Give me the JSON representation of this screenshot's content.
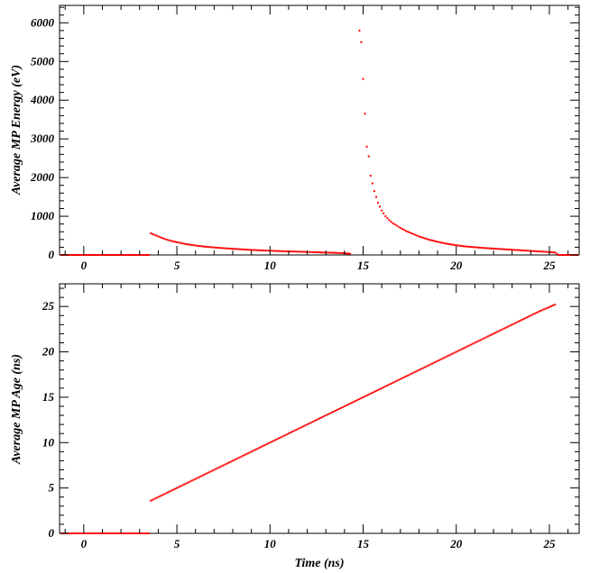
{
  "chart_data": [
    {
      "type": "scatter",
      "ylabel": "Average MP Energy (eV)",
      "xlabel": "",
      "xlim": [
        -1.3,
        26.6
      ],
      "ylim": [
        0,
        6450
      ],
      "x_ticks": [
        0,
        5,
        10,
        15,
        20,
        25
      ],
      "y_ticks": [
        0,
        1000,
        2000,
        3000,
        4000,
        5000,
        6000
      ],
      "x_tick_labels": [
        "0",
        "5",
        "10",
        "15",
        "20",
        "25"
      ],
      "y_tick_labels": [
        "0",
        "1000",
        "2000",
        "3000",
        "4000",
        "5000",
        "6000"
      ],
      "grid": false,
      "marker_color": "#ff0000",
      "series": [
        {
          "points": [
            [
              -1.2,
              0
            ],
            [
              0,
              0
            ],
            [
              1,
              0
            ],
            [
              2,
              0
            ],
            [
              3,
              0
            ],
            [
              3.5,
              0
            ],
            [
              3.6,
              560
            ],
            [
              3.8,
              520
            ],
            [
              4.0,
              480
            ],
            [
              4.2,
              440
            ],
            [
              4.5,
              390
            ],
            [
              4.8,
              350
            ],
            [
              5.0,
              330
            ],
            [
              5.5,
              280
            ],
            [
              6.0,
              245
            ],
            [
              6.5,
              215
            ],
            [
              7.0,
              195
            ],
            [
              7.5,
              175
            ],
            [
              8.0,
              160
            ],
            [
              8.5,
              145
            ],
            [
              9.0,
              130
            ],
            [
              9.5,
              120
            ],
            [
              10.0,
              110
            ],
            [
              10.5,
              100
            ],
            [
              11.0,
              92
            ],
            [
              11.5,
              85
            ],
            [
              12.0,
              78
            ],
            [
              12.5,
              70
            ],
            [
              13.0,
              62
            ],
            [
              13.5,
              55
            ],
            [
              14.0,
              45
            ],
            [
              14.3,
              30
            ],
            [
              14.8,
              5800
            ],
            [
              14.9,
              5500
            ],
            [
              15.0,
              4550
            ],
            [
              15.1,
              3650
            ],
            [
              15.2,
              2800
            ],
            [
              15.3,
              2550
            ],
            [
              15.4,
              2050
            ],
            [
              15.5,
              1850
            ],
            [
              15.6,
              1650
            ],
            [
              15.7,
              1500
            ],
            [
              15.8,
              1350
            ],
            [
              15.9,
              1250
            ],
            [
              16.0,
              1150
            ],
            [
              16.2,
              1000
            ],
            [
              16.4,
              900
            ],
            [
              16.6,
              820
            ],
            [
              16.8,
              760
            ],
            [
              17.0,
              700
            ],
            [
              17.3,
              620
            ],
            [
              17.6,
              560
            ],
            [
              18.0,
              480
            ],
            [
              18.5,
              400
            ],
            [
              19.0,
              340
            ],
            [
              19.5,
              290
            ],
            [
              20.0,
              250
            ],
            [
              20.5,
              220
            ],
            [
              21.0,
              200
            ],
            [
              21.5,
              180
            ],
            [
              22.0,
              165
            ],
            [
              22.5,
              150
            ],
            [
              23.0,
              135
            ],
            [
              23.5,
              120
            ],
            [
              24.0,
              105
            ],
            [
              24.5,
              90
            ],
            [
              25.0,
              75
            ],
            [
              25.3,
              65
            ],
            [
              25.5,
              0
            ],
            [
              26.5,
              0
            ]
          ]
        }
      ]
    },
    {
      "type": "scatter",
      "ylabel": "Average MP Age (ns)",
      "xlabel": "Time (ns)",
      "xlim": [
        -1.3,
        26.6
      ],
      "ylim": [
        0,
        27.5
      ],
      "x_ticks": [
        0,
        5,
        10,
        15,
        20,
        25
      ],
      "y_ticks": [
        0,
        5,
        10,
        15,
        20,
        25
      ],
      "x_tick_labels": [
        "0",
        "5",
        "10",
        "15",
        "20",
        "25"
      ],
      "y_tick_labels": [
        "0",
        "5",
        "10",
        "15",
        "20",
        "25"
      ],
      "grid": false,
      "marker_color": "#ff0000",
      "series": [
        {
          "points": [
            [
              -1.2,
              0
            ],
            [
              0,
              0
            ],
            [
              1,
              0
            ],
            [
              2,
              0
            ],
            [
              3,
              0
            ],
            [
              3.5,
              0
            ],
            [
              3.6,
              3.6
            ],
            [
              4.5,
              4.5
            ],
            [
              5.5,
              5.5
            ],
            [
              6.5,
              6.5
            ],
            [
              7.5,
              7.5
            ],
            [
              8.5,
              8.5
            ],
            [
              9.5,
              9.5
            ],
            [
              10.5,
              10.5
            ],
            [
              11.5,
              11.5
            ],
            [
              12.5,
              12.5
            ],
            [
              13.5,
              13.5
            ],
            [
              14.3,
              14.3
            ],
            [
              14.7,
              14.7
            ],
            [
              15.5,
              15.5
            ],
            [
              16.5,
              16.5
            ],
            [
              17.5,
              17.5
            ],
            [
              18.5,
              18.5
            ],
            [
              19.5,
              19.5
            ],
            [
              20.5,
              20.5
            ],
            [
              21.5,
              21.5
            ],
            [
              22.5,
              22.5
            ],
            [
              23.5,
              23.5
            ],
            [
              24.5,
              24.5
            ],
            [
              25.3,
              25.2
            ]
          ]
        }
      ]
    }
  ]
}
